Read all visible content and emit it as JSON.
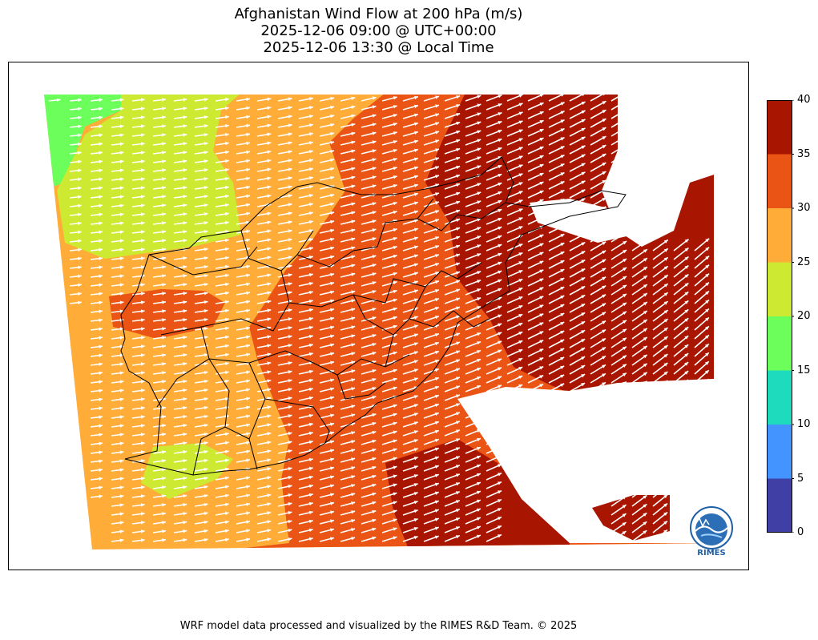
{
  "title": {
    "line1": "Afghanistan Wind Flow at 200 hPa (m/s)",
    "line2": "2025-12-06 09:00 @ UTC+00:00",
    "line3": "2025-12-06 13:30 @ Local Time"
  },
  "footer": "WRF model data processed and visualized by the RIMES R&D Team. © 2025",
  "logo": {
    "text": "RIMES",
    "color": "#1f5fa6"
  },
  "colorbar": {
    "ticks": [
      "0",
      "5",
      "10",
      "15",
      "20",
      "25",
      "30",
      "35",
      "40"
    ],
    "levels": [
      0,
      5,
      10,
      15,
      20,
      25,
      30,
      35,
      40
    ],
    "colors": [
      "#3f3fa5",
      "#4394ff",
      "#1edbbe",
      "#6cff5c",
      "#cde931",
      "#ffac38",
      "#ea5414",
      "#a81500"
    ]
  },
  "map": {
    "variable": "wind speed at 200 hPa",
    "units": "m/s",
    "arrow_color": "#ffffff",
    "flow_direction": "west to east, turning south-west to north-east in the east",
    "speed_gradient": "slowest in the north-west, fastest in the north-east and south-east"
  }
}
